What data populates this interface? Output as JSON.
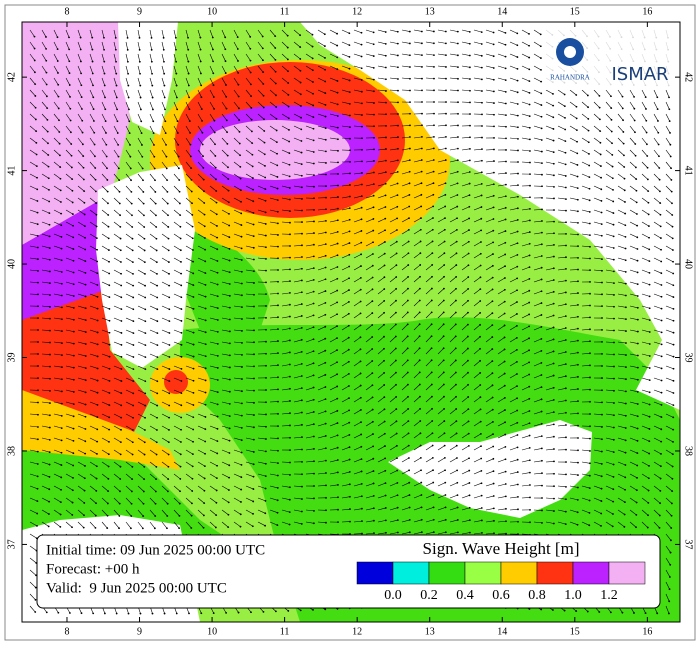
{
  "map": {
    "xticks": [
      8,
      9,
      10,
      11,
      12,
      13,
      14,
      15,
      16
    ],
    "yticks": [
      37,
      38,
      39,
      40,
      41,
      42
    ],
    "xlim": [
      7.38,
      16.45
    ],
    "ylim": [
      36.17,
      42.59
    ],
    "logos": [
      "RAHANDRA",
      "ISMAR"
    ],
    "info": [
      "Initial time: 09 Jun 2025 00:00 UTC",
      "Forecast: +00 h",
      "Valid:  9 Jun 2025 00:00 UTC"
    ],
    "legend": {
      "title": "Sign. Wave Height [m]",
      "colors": [
        "#0000dd",
        "#00eedd",
        "#33dd11",
        "#99ff44",
        "#ffcc00",
        "#ff3311",
        "#bb22ff",
        "#f3b0f3"
      ],
      "labels": [
        "0.0",
        "0.2",
        "0.4",
        "0.6",
        "0.8",
        "1.0",
        "1.2"
      ]
    }
  }
}
